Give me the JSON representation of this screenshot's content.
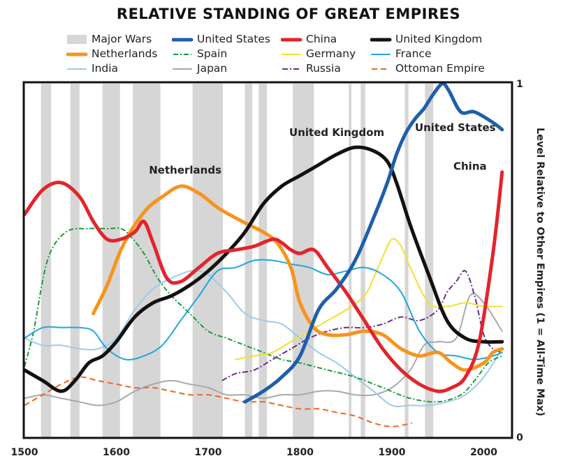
{
  "chart_data": {
    "type": "line",
    "title": "RELATIVE STANDING OF GREAT EMPIRES",
    "ylabel": "Level Relative to Other Empires (1 = All-Time Max)",
    "xlim": [
      1500,
      2030
    ],
    "ylim": [
      0,
      1
    ],
    "x_ticks": [
      1500,
      1600,
      1700,
      1800,
      1900,
      2000
    ],
    "y_ticks": [
      {
        "value": 0,
        "label": "0"
      },
      {
        "value": 1,
        "label": "1"
      }
    ],
    "legend_placement": "top",
    "major_wars": {
      "name": "Major Wars",
      "color": "#d6d6d6",
      "periods": [
        [
          1518,
          1529
        ],
        [
          1550,
          1560
        ],
        [
          1585,
          1604
        ],
        [
          1618,
          1648
        ],
        [
          1683,
          1716
        ],
        [
          1740,
          1748
        ],
        [
          1755,
          1764
        ],
        [
          1792,
          1815
        ],
        [
          1853,
          1856
        ],
        [
          1866,
          1871
        ],
        [
          1914,
          1918
        ],
        [
          1936,
          1945
        ]
      ]
    },
    "series": [
      {
        "name": "United States",
        "color": "#1f5eac",
        "width": 5,
        "dash": "",
        "x": [
          1740,
          1760,
          1780,
          1800,
          1820,
          1840,
          1860,
          1880,
          1895,
          1905,
          1915,
          1925,
          1935,
          1945,
          1955,
          1962,
          1975,
          1990,
          2010,
          2020
        ],
        "y": [
          0.1,
          0.13,
          0.17,
          0.23,
          0.36,
          0.42,
          0.5,
          0.62,
          0.72,
          0.8,
          0.86,
          0.9,
          0.93,
          0.97,
          1.0,
          0.98,
          0.92,
          0.92,
          0.89,
          0.87
        ]
      },
      {
        "name": "China",
        "color": "#e3242b",
        "width": 5,
        "dash": "",
        "x": [
          1500,
          1520,
          1540,
          1560,
          1575,
          1590,
          1605,
          1620,
          1630,
          1640,
          1655,
          1670,
          1690,
          1710,
          1730,
          1750,
          1770,
          1780,
          1790,
          1800,
          1815,
          1830,
          1850,
          1870,
          1890,
          1910,
          1930,
          1950,
          1965,
          1980,
          1995,
          2010,
          2020
        ],
        "y": [
          0.63,
          0.7,
          0.72,
          0.68,
          0.61,
          0.56,
          0.56,
          0.58,
          0.61,
          0.55,
          0.45,
          0.44,
          0.48,
          0.52,
          0.53,
          0.54,
          0.56,
          0.55,
          0.53,
          0.52,
          0.53,
          0.48,
          0.41,
          0.33,
          0.25,
          0.19,
          0.15,
          0.13,
          0.14,
          0.17,
          0.27,
          0.52,
          0.75
        ]
      },
      {
        "name": "United Kingdom",
        "color": "#111111",
        "width": 5,
        "dash": "",
        "x": [
          1500,
          1520,
          1540,
          1555,
          1570,
          1585,
          1600,
          1620,
          1640,
          1660,
          1680,
          1700,
          1720,
          1740,
          1760,
          1780,
          1800,
          1820,
          1840,
          1860,
          1880,
          1895,
          1905,
          1920,
          1940,
          1960,
          1980,
          2000,
          2020
        ],
        "y": [
          0.19,
          0.16,
          0.13,
          0.16,
          0.21,
          0.23,
          0.27,
          0.34,
          0.38,
          0.4,
          0.43,
          0.47,
          0.52,
          0.58,
          0.66,
          0.71,
          0.74,
          0.77,
          0.8,
          0.82,
          0.81,
          0.78,
          0.72,
          0.6,
          0.46,
          0.33,
          0.28,
          0.27,
          0.27
        ]
      },
      {
        "name": "Netherlands",
        "color": "#f7941d",
        "width": 5,
        "dash": "",
        "x": [
          1575,
          1590,
          1605,
          1620,
          1635,
          1650,
          1670,
          1690,
          1710,
          1730,
          1745,
          1760,
          1775,
          1790,
          1800,
          1815,
          1830,
          1850,
          1870,
          1890,
          1910,
          1930,
          1950,
          1965,
          1980,
          2000,
          2010,
          2020
        ],
        "y": [
          0.35,
          0.43,
          0.53,
          0.6,
          0.65,
          0.68,
          0.71,
          0.69,
          0.65,
          0.62,
          0.6,
          0.58,
          0.55,
          0.48,
          0.38,
          0.31,
          0.29,
          0.29,
          0.3,
          0.29,
          0.25,
          0.23,
          0.24,
          0.21,
          0.19,
          0.21,
          0.24,
          0.25
        ]
      },
      {
        "name": "Spain",
        "color": "#1a9a3b",
        "width": 2,
        "dash": "7,3,2,3",
        "x": [
          1500,
          1510,
          1525,
          1545,
          1570,
          1590,
          1605,
          1615,
          1630,
          1645,
          1660,
          1680,
          1700,
          1720,
          1740,
          1760,
          1780,
          1800,
          1830,
          1860,
          1890,
          1920,
          1950,
          1975,
          1990,
          2005,
          2020
        ],
        "y": [
          0.2,
          0.3,
          0.5,
          0.58,
          0.59,
          0.59,
          0.59,
          0.57,
          0.52,
          0.45,
          0.4,
          0.35,
          0.3,
          0.28,
          0.26,
          0.24,
          0.22,
          0.21,
          0.19,
          0.17,
          0.14,
          0.11,
          0.1,
          0.12,
          0.16,
          0.21,
          0.23
        ]
      },
      {
        "name": "Germany",
        "color": "#f4e02d",
        "width": 2,
        "dash": "",
        "x": [
          1730,
          1750,
          1770,
          1790,
          1810,
          1830,
          1850,
          1870,
          1880,
          1890,
          1900,
          1910,
          1920,
          1940,
          1960,
          1980,
          2000,
          2020
        ],
        "y": [
          0.22,
          0.23,
          0.24,
          0.27,
          0.3,
          0.33,
          0.36,
          0.4,
          0.45,
          0.51,
          0.56,
          0.54,
          0.48,
          0.38,
          0.37,
          0.38,
          0.37,
          0.37
        ]
      },
      {
        "name": "France",
        "color": "#20a6dc",
        "width": 2,
        "dash": "",
        "x": [
          1500,
          1520,
          1540,
          1560,
          1575,
          1590,
          1610,
          1630,
          1650,
          1670,
          1690,
          1710,
          1730,
          1750,
          1770,
          1790,
          1810,
          1830,
          1850,
          1870,
          1890,
          1910,
          1930,
          1950,
          1970,
          1990,
          2010,
          2020
        ],
        "y": [
          0.28,
          0.31,
          0.31,
          0.31,
          0.3,
          0.25,
          0.22,
          0.23,
          0.26,
          0.33,
          0.4,
          0.47,
          0.48,
          0.5,
          0.5,
          0.49,
          0.48,
          0.46,
          0.47,
          0.48,
          0.46,
          0.41,
          0.3,
          0.24,
          0.23,
          0.22,
          0.23,
          0.24
        ]
      },
      {
        "name": "India",
        "color": "#9fcbe6",
        "width": 2,
        "dash": "",
        "x": [
          1500,
          1520,
          1540,
          1560,
          1580,
          1600,
          1620,
          1640,
          1660,
          1680,
          1690,
          1700,
          1720,
          1740,
          1760,
          1780,
          1800,
          1820,
          1840,
          1860,
          1880,
          1900,
          1920,
          1940,
          1960,
          1980,
          2000,
          2020
        ],
        "y": [
          0.28,
          0.26,
          0.26,
          0.25,
          0.25,
          0.28,
          0.36,
          0.42,
          0.45,
          0.47,
          0.47,
          0.46,
          0.41,
          0.35,
          0.33,
          0.32,
          0.28,
          0.24,
          0.21,
          0.17,
          0.13,
          0.09,
          0.09,
          0.09,
          0.1,
          0.12,
          0.17,
          0.25
        ]
      },
      {
        "name": "Japan",
        "color": "#a9a9a9",
        "width": 2,
        "dash": "",
        "x": [
          1500,
          1520,
          1540,
          1560,
          1580,
          1600,
          1620,
          1640,
          1660,
          1680,
          1700,
          1720,
          1740,
          1760,
          1780,
          1800,
          1820,
          1840,
          1860,
          1880,
          1900,
          1920,
          1935,
          1950,
          1970,
          1985,
          2000,
          2020
        ],
        "y": [
          0.11,
          0.12,
          0.11,
          0.1,
          0.09,
          0.1,
          0.13,
          0.15,
          0.16,
          0.15,
          0.14,
          0.12,
          0.12,
          0.11,
          0.12,
          0.12,
          0.13,
          0.13,
          0.12,
          0.12,
          0.14,
          0.19,
          0.26,
          0.27,
          0.28,
          0.4,
          0.38,
          0.3
        ]
      },
      {
        "name": "Russia",
        "color": "#6a2c8e",
        "width": 2,
        "dash": "8,3,2,3",
        "x": [
          1715,
          1730,
          1750,
          1770,
          1790,
          1810,
          1830,
          1850,
          1870,
          1890,
          1910,
          1930,
          1950,
          1960,
          1970,
          1980,
          1990,
          2000,
          2010,
          2020
        ],
        "y": [
          0.16,
          0.18,
          0.19,
          0.22,
          0.25,
          0.28,
          0.3,
          0.31,
          0.31,
          0.32,
          0.34,
          0.33,
          0.36,
          0.41,
          0.44,
          0.47,
          0.4,
          0.29,
          0.25,
          0.24
        ]
      },
      {
        "name": "Ottoman Empire",
        "color": "#f26522",
        "width": 2,
        "dash": "8,5",
        "x": [
          1500,
          1520,
          1540,
          1560,
          1580,
          1600,
          1620,
          1640,
          1660,
          1680,
          1700,
          1720,
          1740,
          1760,
          1780,
          1800,
          1820,
          1840,
          1860,
          1880,
          1900,
          1922
        ],
        "y": [
          0.09,
          0.12,
          0.15,
          0.17,
          0.16,
          0.15,
          0.14,
          0.14,
          0.13,
          0.12,
          0.12,
          0.11,
          0.1,
          0.1,
          0.09,
          0.08,
          0.08,
          0.07,
          0.06,
          0.04,
          0.03,
          0.04
        ]
      }
    ],
    "annotations": [
      {
        "text": "Netherlands",
        "x": 1675,
        "y": 0.746
      },
      {
        "text": "United Kingdom",
        "x": 1840,
        "y": 0.852
      },
      {
        "text": "United States",
        "x": 1969,
        "y": 0.866
      },
      {
        "text": "China",
        "x": 1985,
        "y": 0.756
      }
    ]
  },
  "legend": {
    "items": [
      {
        "label": "Major Wars",
        "kind": "box"
      },
      {
        "label": "United States",
        "series": "United States"
      },
      {
        "label": "China",
        "series": "China"
      },
      {
        "label": "United Kingdom",
        "series": "United Kingdom"
      },
      {
        "label": "Netherlands",
        "series": "Netherlands"
      },
      {
        "label": "Spain",
        "series": "Spain"
      },
      {
        "label": "Germany",
        "series": "Germany"
      },
      {
        "label": "France",
        "series": "France"
      },
      {
        "label": "India",
        "series": "India"
      },
      {
        "label": "Japan",
        "series": "Japan"
      },
      {
        "label": "Russia",
        "series": "Russia"
      },
      {
        "label": "Ottoman Empire",
        "series": "Ottoman Empire"
      }
    ]
  }
}
